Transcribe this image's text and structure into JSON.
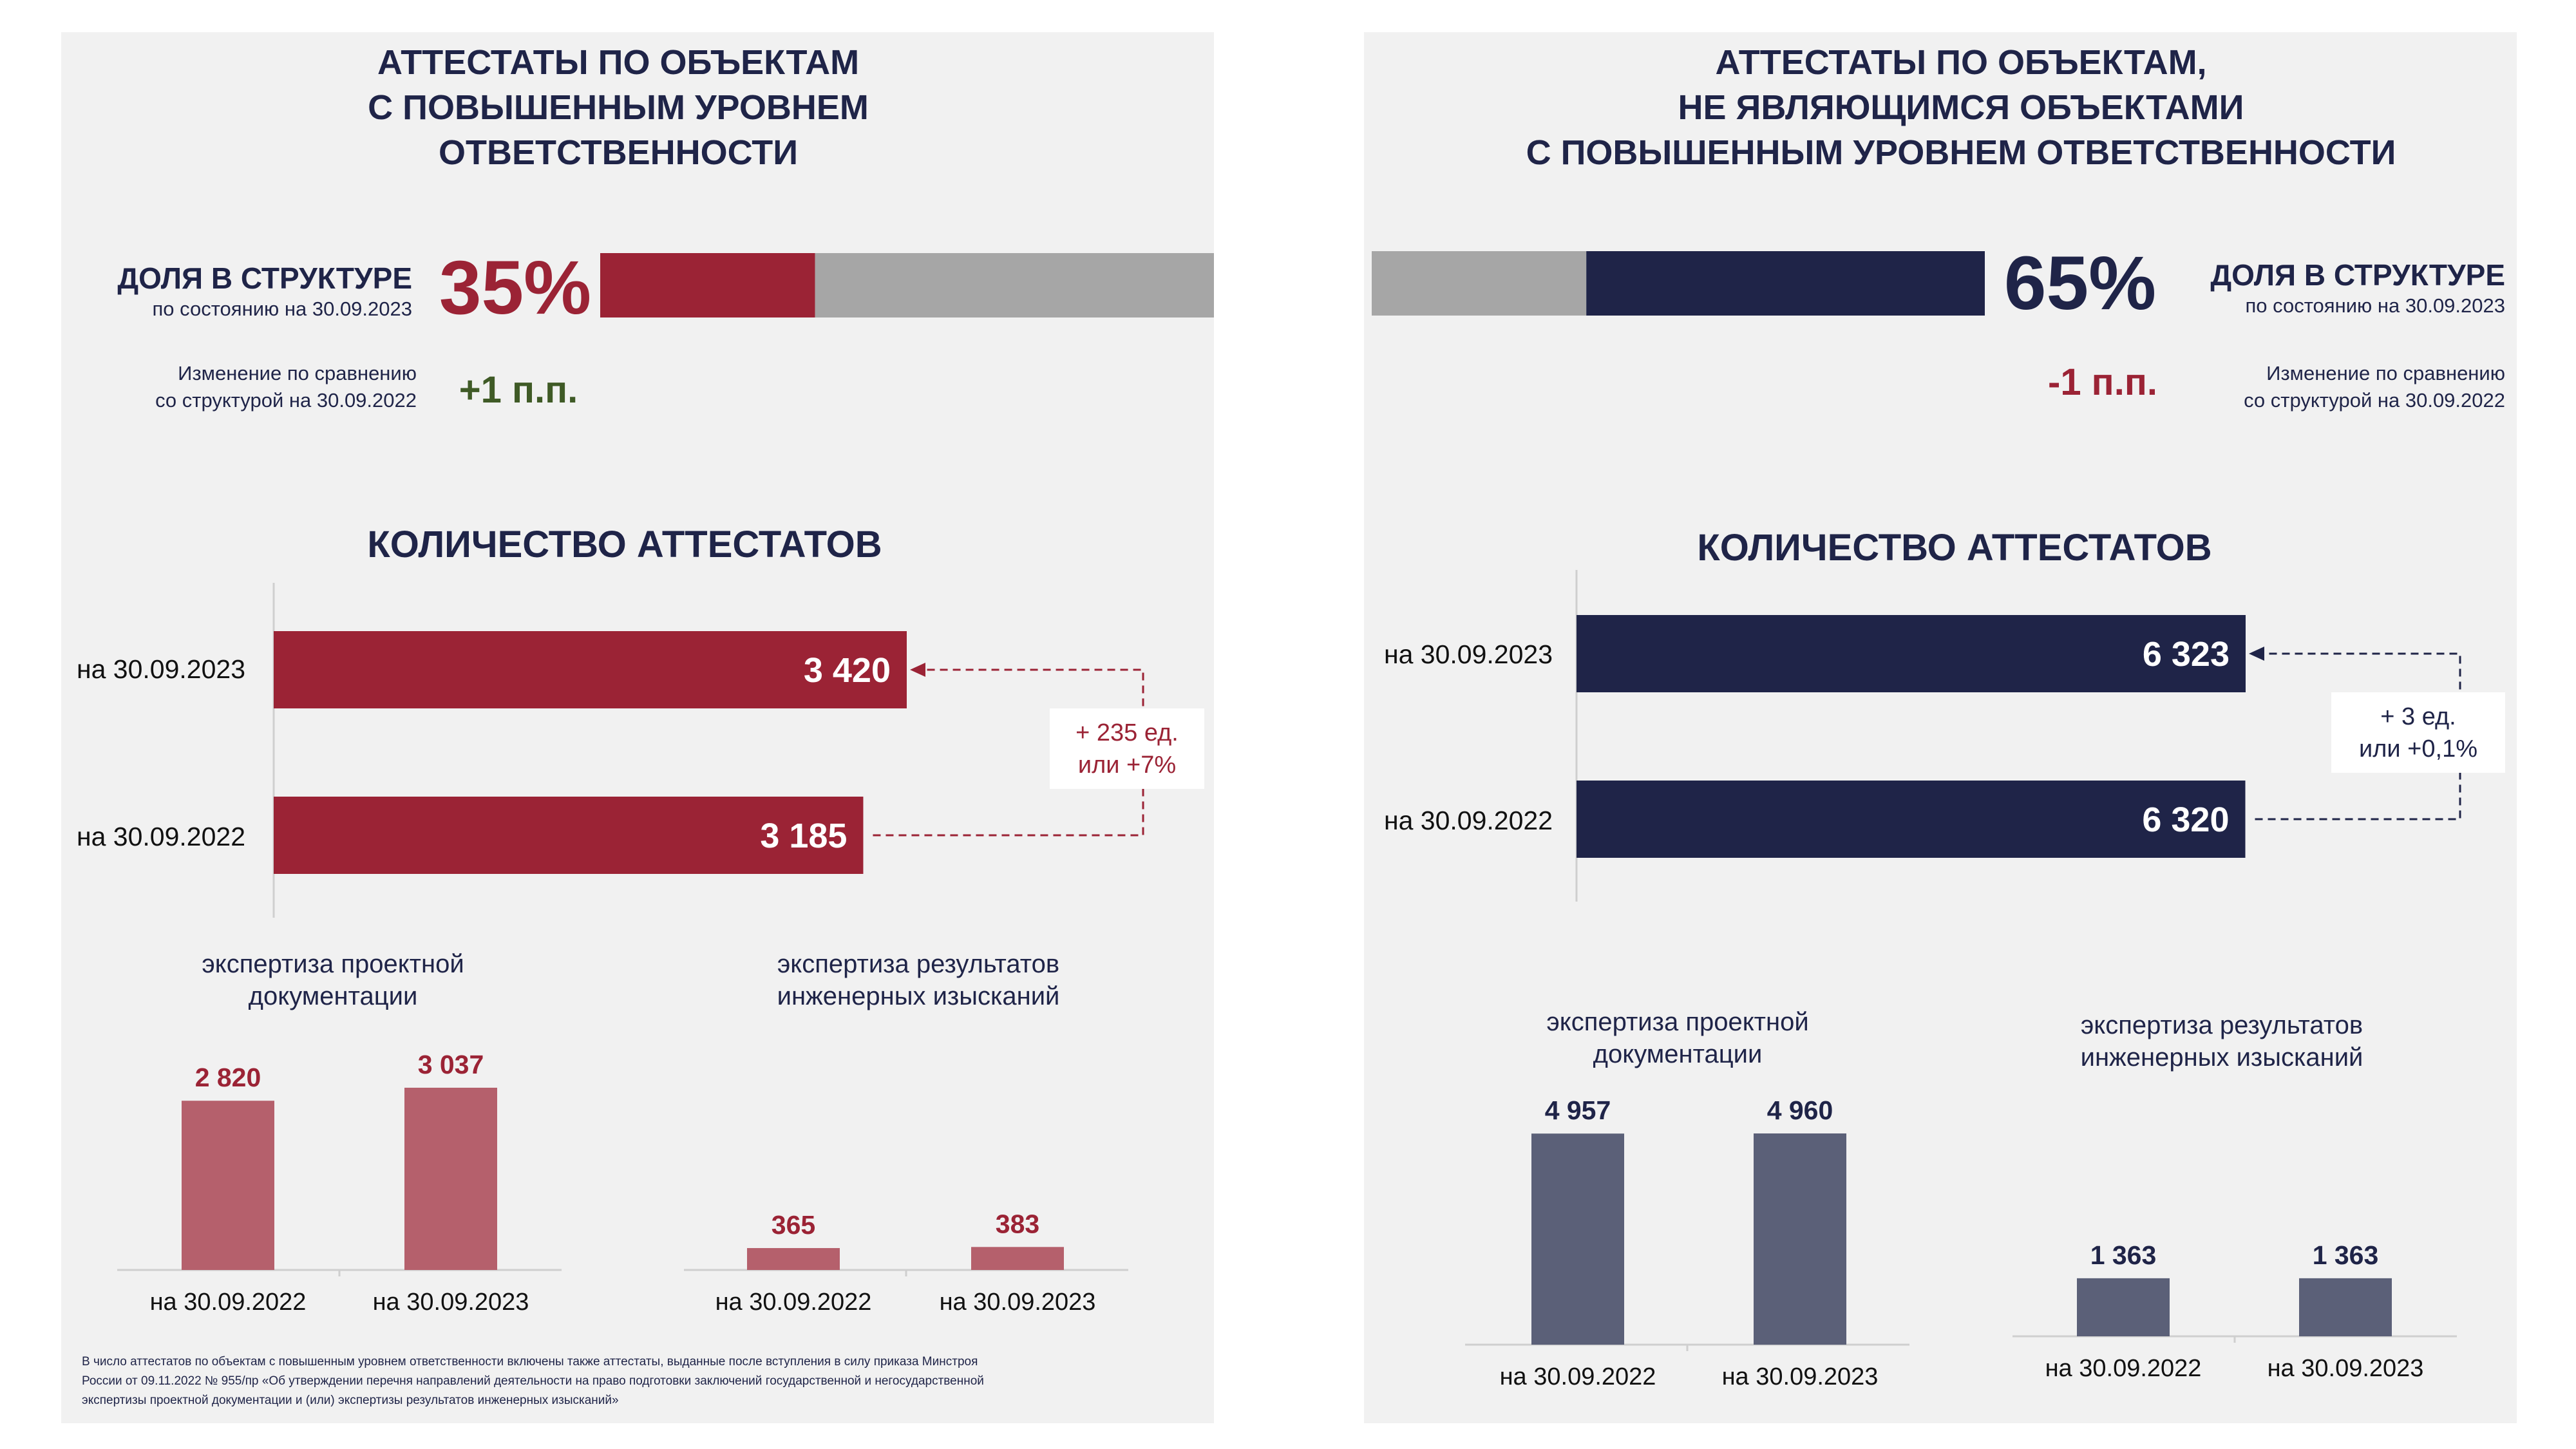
{
  "colors": {
    "left_accent": "#9b2335",
    "left_column": "#b5606c",
    "right_accent": "#1f2448",
    "right_column": "#5b6078",
    "grey_segment": "#a6a6a6",
    "positive_change": "#3f5a26",
    "panel_bg": "#f1f1f1"
  },
  "left": {
    "title": [
      "АТТЕСТАТЫ ПО ОБЪЕКТАМ",
      "С ПОВЫШЕННЫМ УРОВНЕМ",
      "ОТВЕТСТВЕННОСТИ"
    ],
    "share_label": "ДОЛЯ В СТРУКТУРЕ",
    "share_date": "по состоянию  на 30.09.2023",
    "share_value": "35%",
    "change_label": [
      "Изменение  по сравнению",
      "со структурой на 30.09.2022"
    ],
    "change_value": "+1 п.п.",
    "count_title": "КОЛИЧЕСТВО АТТЕСТАТОВ",
    "delta": [
      "+ 235 ед.",
      "или +7%"
    ],
    "subtitle_design": [
      "экспертиза проектной",
      "документации"
    ],
    "subtitle_survey": [
      "экспертиза результатов",
      "инженерных изысканий"
    ],
    "footnote": [
      "В число аттестатов по объектам с повышенным уровнем ответственности включены также аттестаты, выданные после вступления в силу приказа Минстроя",
      "России от 09.11.2022 № 955/пр «Об утверждении перечня направлений деятельности на право подготовки заключений государственной и негосударственной",
      "экспертизы проектной документации и (или) экспертизы результатов инженерных  изысканий»"
    ]
  },
  "right": {
    "title": [
      "АТТЕСТАТЫ ПО ОБЪЕКТАМ,",
      "НЕ ЯВЛЯЮЩИМСЯ ОБЪЕКТАМИ",
      "С ПОВЫШЕННЫМ УРОВНЕМ ОТВЕТСТВЕННОСТИ"
    ],
    "share_label": "ДОЛЯ В СТРУКТУРЕ",
    "share_date": "по состоянию  на 30.09.2023",
    "share_value": "65%",
    "change_label": [
      "Изменение  по сравнению",
      "со структурой  на 30.09.2022"
    ],
    "change_value": "-1 п.п.",
    "count_title": "КОЛИЧЕСТВО АТТЕСТАТОВ",
    "delta": [
      "+ 3 ед.",
      "или +0,1%"
    ],
    "subtitle_design": [
      "экспертиза проектной",
      "документации"
    ],
    "subtitle_survey": [
      "экспертиза результатов",
      "инженерных изысканий"
    ]
  },
  "chart_data": [
    {
      "type": "bar",
      "orientation": "horizontal",
      "panel": "left",
      "title": "КОЛИЧЕСТВО АТТЕСТАТОВ",
      "categories": [
        "на 30.09.2023",
        "на 30.09.2022"
      ],
      "values": [
        3420,
        3185
      ],
      "labels": [
        "3 420",
        "3 185"
      ]
    },
    {
      "type": "bar",
      "panel": "left",
      "title": "экспертиза проектной документации",
      "categories": [
        "на 30.09.2022",
        "на 30.09.2023"
      ],
      "values": [
        2820,
        3037
      ],
      "labels": [
        "2 820",
        "3 037"
      ]
    },
    {
      "type": "bar",
      "panel": "left",
      "title": "экспертиза результатов инженерных изысканий",
      "categories": [
        "на 30.09.2022",
        "на 30.09.2023"
      ],
      "values": [
        365,
        383
      ],
      "labels": [
        "365",
        "383"
      ]
    },
    {
      "type": "bar",
      "orientation": "horizontal",
      "panel": "right",
      "title": "КОЛИЧЕСТВО АТТЕСТАТОВ",
      "categories": [
        "на 30.09.2023",
        "на 30.09.2022"
      ],
      "values": [
        6323,
        6320
      ],
      "labels": [
        "6 323",
        "6 320"
      ]
    },
    {
      "type": "bar",
      "panel": "right",
      "title": "экспертиза проектной документации",
      "categories": [
        "на 30.09.2022",
        "на 30.09.2023"
      ],
      "values": [
        4957,
        4960
      ],
      "labels": [
        "4 957",
        "4 960"
      ]
    },
    {
      "type": "bar",
      "panel": "right",
      "title": "экспертиза результатов инженерных изысканий",
      "categories": [
        "на 30.09.2022",
        "на 30.09.2023"
      ],
      "values": [
        1363,
        1363
      ],
      "labels": [
        "1 363",
        "1 363"
      ]
    },
    {
      "type": "bar",
      "orientation": "horizontal",
      "stacked": true,
      "panel": "left",
      "title": "ДОЛЯ В СТРУКТУРЕ",
      "values": [
        35,
        65
      ],
      "unit": "%"
    },
    {
      "type": "bar",
      "orientation": "horizontal",
      "stacked": true,
      "panel": "right",
      "title": "ДОЛЯ В СТРУКТУРЕ",
      "values": [
        35,
        65
      ],
      "unit": "%"
    }
  ]
}
